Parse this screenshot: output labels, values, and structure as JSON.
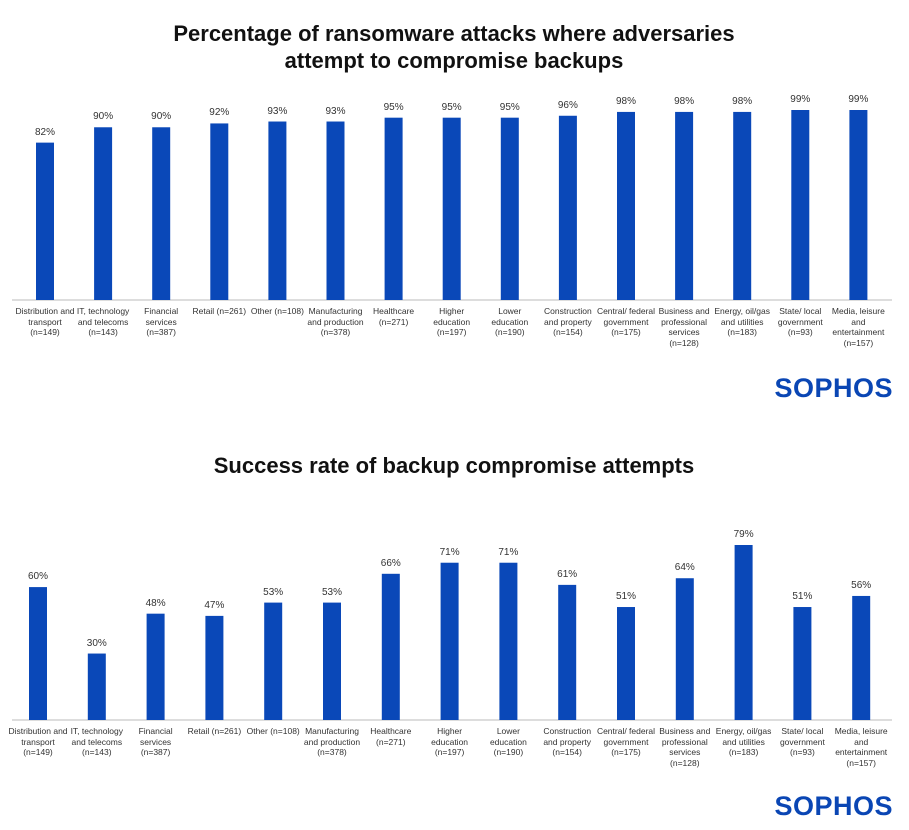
{
  "chart_data": [
    {
      "type": "bar",
      "title": "Percentage of ransomware attacks where adversaries attempt to compromise backups",
      "categories": [
        "Distribution and transport (n=149)",
        "IT, technology and telecoms (n=143)",
        "Financial services (n=387)",
        "Retail (n=261)",
        "Other (n=108)",
        "Manufacturing and production (n=378)",
        "Healthcare (n=271)",
        "Higher education (n=197)",
        "Lower education (n=190)",
        "Construction and property (n=154)",
        "Central/ federal government (n=175)",
        "Business and professional services (n=128)",
        "Energy, oil/gas and utilities (n=183)",
        "State/ local government (n=93)",
        "Media, leisure and entertainment (n=157)"
      ],
      "values": [
        82,
        90,
        90,
        92,
        93,
        93,
        95,
        95,
        95,
        96,
        98,
        98,
        98,
        99,
        99
      ],
      "value_labels": [
        "82%",
        "90%",
        "90%",
        "92%",
        "93%",
        "93%",
        "95%",
        "95%",
        "95%",
        "96%",
        "98%",
        "98%",
        "98%",
        "99%",
        "99%"
      ],
      "color": "#0a48b8",
      "logo": "SOPHOS"
    },
    {
      "type": "bar",
      "title": "Success rate of backup compromise attempts",
      "categories": [
        "Distribution and transport (n=149)",
        "IT, technology and telecoms (n=143)",
        "Financial services (n=387)",
        "Retail (n=261)",
        "Other (n=108)",
        "Manufacturing and production (n=378)",
        "Healthcare (n=271)",
        "Higher education (n=197)",
        "Lower education (n=190)",
        "Construction and property (n=154)",
        "Central/ federal government (n=175)",
        "Business and professional services (n=128)",
        "Energy, oil/gas and utilities (n=183)",
        "State/ local government (n=93)",
        "Media, leisure and entertainment (n=157)"
      ],
      "values": [
        60,
        30,
        48,
        47,
        53,
        53,
        66,
        71,
        71,
        61,
        51,
        64,
        79,
        51,
        56
      ],
      "value_labels": [
        "60%",
        "30%",
        "48%",
        "47%",
        "53%",
        "53%",
        "66%",
        "71%",
        "71%",
        "61%",
        "51%",
        "64%",
        "79%",
        "51%",
        "56%"
      ],
      "color": "#0a48b8",
      "logo": "SOPHOS"
    }
  ]
}
